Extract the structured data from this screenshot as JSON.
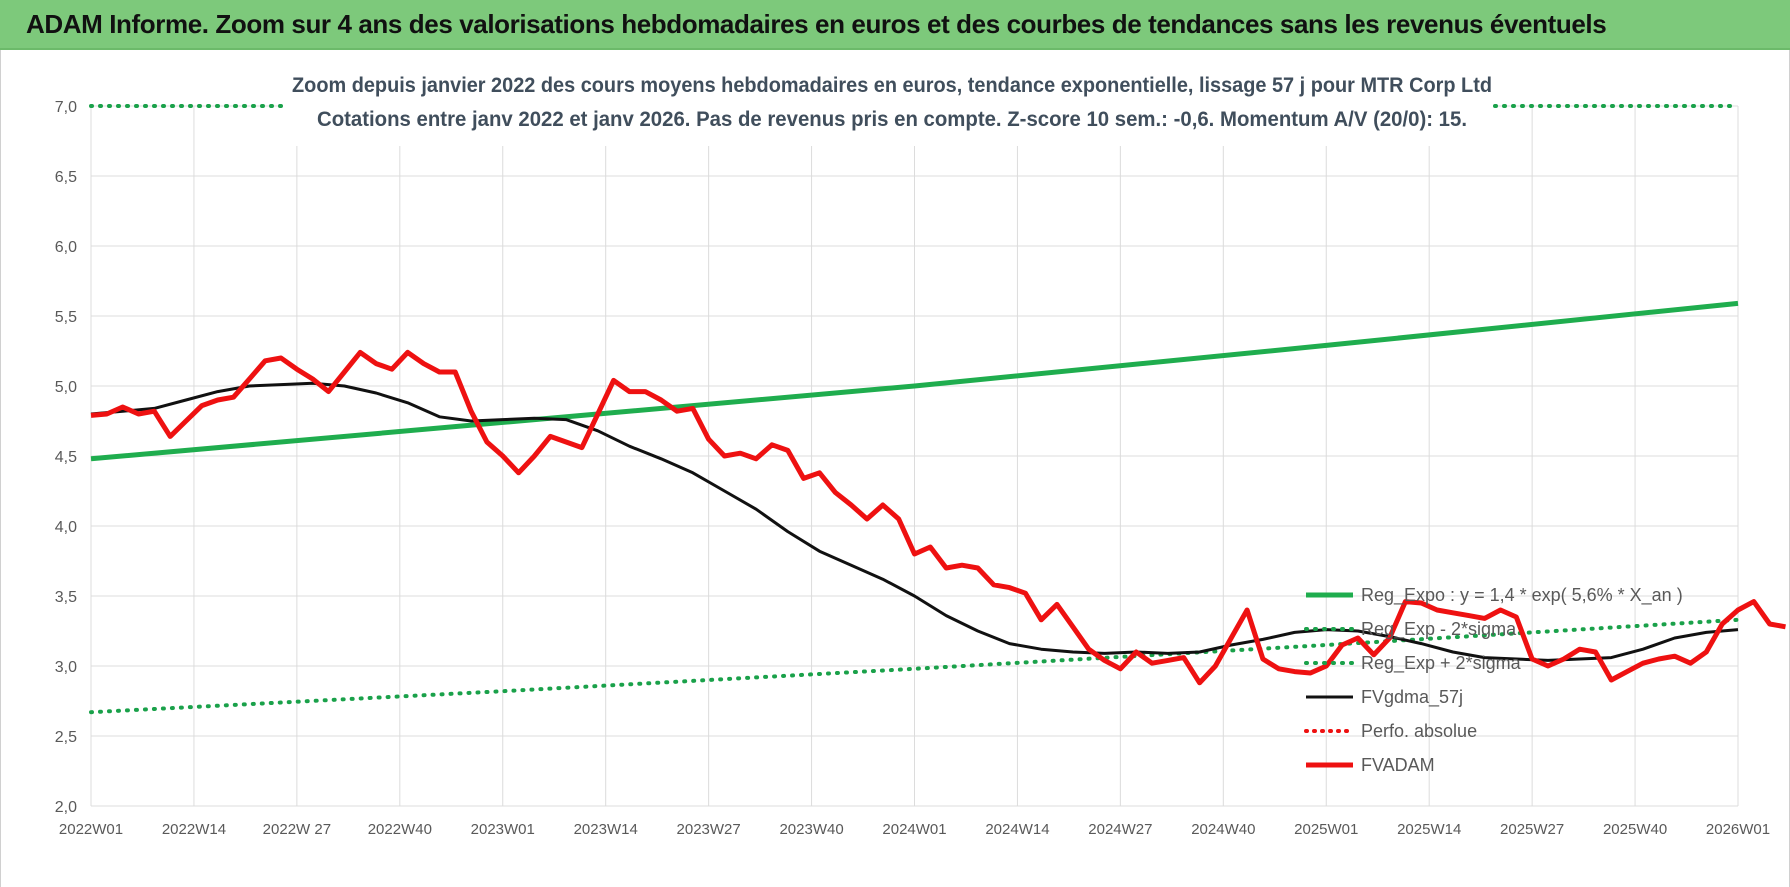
{
  "header": {
    "title": "ADAM Informe. Zoom sur 4 ans des valorisations hebdomadaires en euros et des courbes de tendances sans les revenus éventuels"
  },
  "colors": {
    "header_bg": "#7dc97b",
    "green": "#1fad4e",
    "green_dotted": "#1aa14a",
    "red": "#ee1111",
    "black": "#111111",
    "grid": "#dcdcdc",
    "axis_text": "#595959",
    "title_text": "#404e5c"
  },
  "chart_data": {
    "type": "line",
    "title_line1": "Zoom depuis janvier 2022 des cours moyens hebdomadaires en euros, tendance exponentielle, lissage 57 j pour MTR Corp Ltd",
    "title_line2": "Cotations entre janv 2022 et janv 2026. Pas de revenus pris en compte. Z-score 10 sem.: -0,6. Momentum A/V (20/0): 15.",
    "x_tick_labels": [
      "2022W01",
      "2022W14",
      "2022W 27",
      "2022W40",
      "2023W01",
      "2023W14",
      "2023W27",
      "2023W40",
      "2024W01",
      "2024W14",
      "2024W27",
      "2024W40",
      "2025W01",
      "2025W14",
      "2025W27",
      "2025W40",
      "2026W01"
    ],
    "x_range_weeks": [
      0,
      208
    ],
    "y_tick_labels": [
      "2,0",
      "2,5",
      "3,0",
      "3,5",
      "4,0",
      "4,5",
      "5,0",
      "5,5",
      "6,0",
      "6,5",
      "7,0"
    ],
    "ylim": [
      2.0,
      7.0
    ],
    "grid": true,
    "legend_position": "bottom-right",
    "series": [
      {
        "name": "Reg_Expo : y = 1,4 * exp( 5,6% *  X_an )",
        "style": "solid-green",
        "points": [
          [
            0,
            4.48
          ],
          [
            52,
            4.74
          ],
          [
            104,
            5.0
          ],
          [
            156,
            5.29
          ],
          [
            208,
            5.59
          ]
        ]
      },
      {
        "name": "Reg_Exp - 2*sigma",
        "style": "dotted-green",
        "points": [
          [
            0,
            2.67
          ],
          [
            52,
            2.82
          ],
          [
            104,
            2.98
          ],
          [
            156,
            3.15
          ],
          [
            208,
            3.33
          ]
        ]
      },
      {
        "name": "Reg_Exp + 2*sigma",
        "style": "dotted-green",
        "points": [
          [
            0,
            7.0
          ],
          [
            208,
            7.0
          ]
        ]
      },
      {
        "name": "FVgdma_57j",
        "style": "solid-black",
        "points": [
          [
            0,
            4.8
          ],
          [
            4,
            4.82
          ],
          [
            8,
            4.84
          ],
          [
            12,
            4.9
          ],
          [
            16,
            4.96
          ],
          [
            20,
            5.0
          ],
          [
            24,
            5.01
          ],
          [
            28,
            5.02
          ],
          [
            32,
            5.0
          ],
          [
            36,
            4.95
          ],
          [
            40,
            4.88
          ],
          [
            44,
            4.78
          ],
          [
            48,
            4.75
          ],
          [
            52,
            4.76
          ],
          [
            56,
            4.77
          ],
          [
            60,
            4.76
          ],
          [
            64,
            4.68
          ],
          [
            68,
            4.57
          ],
          [
            72,
            4.48
          ],
          [
            76,
            4.38
          ],
          [
            80,
            4.25
          ],
          [
            84,
            4.12
          ],
          [
            88,
            3.96
          ],
          [
            92,
            3.82
          ],
          [
            96,
            3.72
          ],
          [
            100,
            3.62
          ],
          [
            104,
            3.5
          ],
          [
            108,
            3.36
          ],
          [
            112,
            3.25
          ],
          [
            116,
            3.16
          ],
          [
            120,
            3.12
          ],
          [
            124,
            3.1
          ],
          [
            128,
            3.09
          ],
          [
            132,
            3.1
          ],
          [
            136,
            3.09
          ],
          [
            140,
            3.1
          ],
          [
            144,
            3.15
          ],
          [
            148,
            3.19
          ],
          [
            152,
            3.24
          ],
          [
            156,
            3.26
          ],
          [
            160,
            3.25
          ],
          [
            164,
            3.21
          ],
          [
            168,
            3.16
          ],
          [
            172,
            3.1
          ],
          [
            176,
            3.06
          ],
          [
            180,
            3.05
          ],
          [
            184,
            3.04
          ],
          [
            188,
            3.05
          ],
          [
            192,
            3.06
          ],
          [
            196,
            3.12
          ],
          [
            200,
            3.2
          ],
          [
            204,
            3.24
          ],
          [
            208,
            3.26
          ]
        ]
      },
      {
        "name": "Perfo. absolue",
        "style": "dotted-red",
        "points": []
      },
      {
        "name": "FVADAM",
        "style": "solid-red",
        "points": [
          [
            0,
            4.79
          ],
          [
            2,
            4.8
          ],
          [
            4,
            4.85
          ],
          [
            6,
            4.8
          ],
          [
            8,
            4.82
          ],
          [
            10,
            4.64
          ],
          [
            12,
            4.75
          ],
          [
            14,
            4.86
          ],
          [
            16,
            4.9
          ],
          [
            18,
            4.92
          ],
          [
            20,
            5.05
          ],
          [
            22,
            5.18
          ],
          [
            24,
            5.2
          ],
          [
            26,
            5.12
          ],
          [
            28,
            5.05
          ],
          [
            30,
            4.96
          ],
          [
            32,
            5.1
          ],
          [
            34,
            5.24
          ],
          [
            36,
            5.16
          ],
          [
            38,
            5.12
          ],
          [
            40,
            5.24
          ],
          [
            42,
            5.16
          ],
          [
            44,
            5.1
          ],
          [
            46,
            5.1
          ],
          [
            48,
            4.82
          ],
          [
            50,
            4.6
          ],
          [
            52,
            4.5
          ],
          [
            54,
            4.38
          ],
          [
            56,
            4.5
          ],
          [
            58,
            4.64
          ],
          [
            60,
            4.6
          ],
          [
            62,
            4.56
          ],
          [
            64,
            4.8
          ],
          [
            66,
            5.04
          ],
          [
            68,
            4.96
          ],
          [
            70,
            4.96
          ],
          [
            72,
            4.9
          ],
          [
            74,
            4.82
          ],
          [
            76,
            4.84
          ],
          [
            78,
            4.62
          ],
          [
            80,
            4.5
          ],
          [
            82,
            4.52
          ],
          [
            84,
            4.48
          ],
          [
            86,
            4.58
          ],
          [
            88,
            4.54
          ],
          [
            90,
            4.34
          ],
          [
            92,
            4.38
          ],
          [
            94,
            4.24
          ],
          [
            96,
            4.15
          ],
          [
            98,
            4.05
          ],
          [
            100,
            4.15
          ],
          [
            102,
            4.05
          ],
          [
            104,
            3.8
          ],
          [
            106,
            3.85
          ],
          [
            108,
            3.7
          ],
          [
            110,
            3.72
          ],
          [
            112,
            3.7
          ],
          [
            114,
            3.58
          ],
          [
            116,
            3.56
          ],
          [
            118,
            3.52
          ],
          [
            120,
            3.33
          ],
          [
            122,
            3.44
          ],
          [
            124,
            3.28
          ],
          [
            126,
            3.12
          ],
          [
            128,
            3.04
          ],
          [
            130,
            2.98
          ],
          [
            132,
            3.1
          ],
          [
            134,
            3.02
          ],
          [
            136,
            3.04
          ],
          [
            138,
            3.06
          ],
          [
            140,
            2.88
          ],
          [
            142,
            3.0
          ],
          [
            144,
            3.2
          ],
          [
            146,
            3.4
          ],
          [
            148,
            3.05
          ],
          [
            150,
            2.98
          ],
          [
            152,
            2.96
          ],
          [
            154,
            2.95
          ],
          [
            156,
            3.0
          ],
          [
            158,
            3.15
          ],
          [
            160,
            3.2
          ],
          [
            162,
            3.08
          ],
          [
            164,
            3.2
          ],
          [
            166,
            3.46
          ],
          [
            168,
            3.45
          ],
          [
            170,
            3.4
          ],
          [
            172,
            3.38
          ],
          [
            174,
            3.36
          ],
          [
            176,
            3.34
          ],
          [
            178,
            3.4
          ],
          [
            180,
            3.35
          ],
          [
            182,
            3.05
          ],
          [
            184,
            3.0
          ],
          [
            186,
            3.05
          ],
          [
            188,
            3.12
          ],
          [
            190,
            3.1
          ],
          [
            192,
            2.9
          ],
          [
            194,
            2.96
          ],
          [
            196,
            3.02
          ],
          [
            198,
            3.05
          ],
          [
            200,
            3.07
          ],
          [
            202,
            3.02
          ],
          [
            204,
            3.1
          ],
          [
            206,
            3.3
          ],
          [
            208,
            3.4
          ],
          [
            210,
            3.46
          ],
          [
            212,
            3.3
          ],
          [
            214,
            3.28
          ]
        ]
      }
    ]
  }
}
